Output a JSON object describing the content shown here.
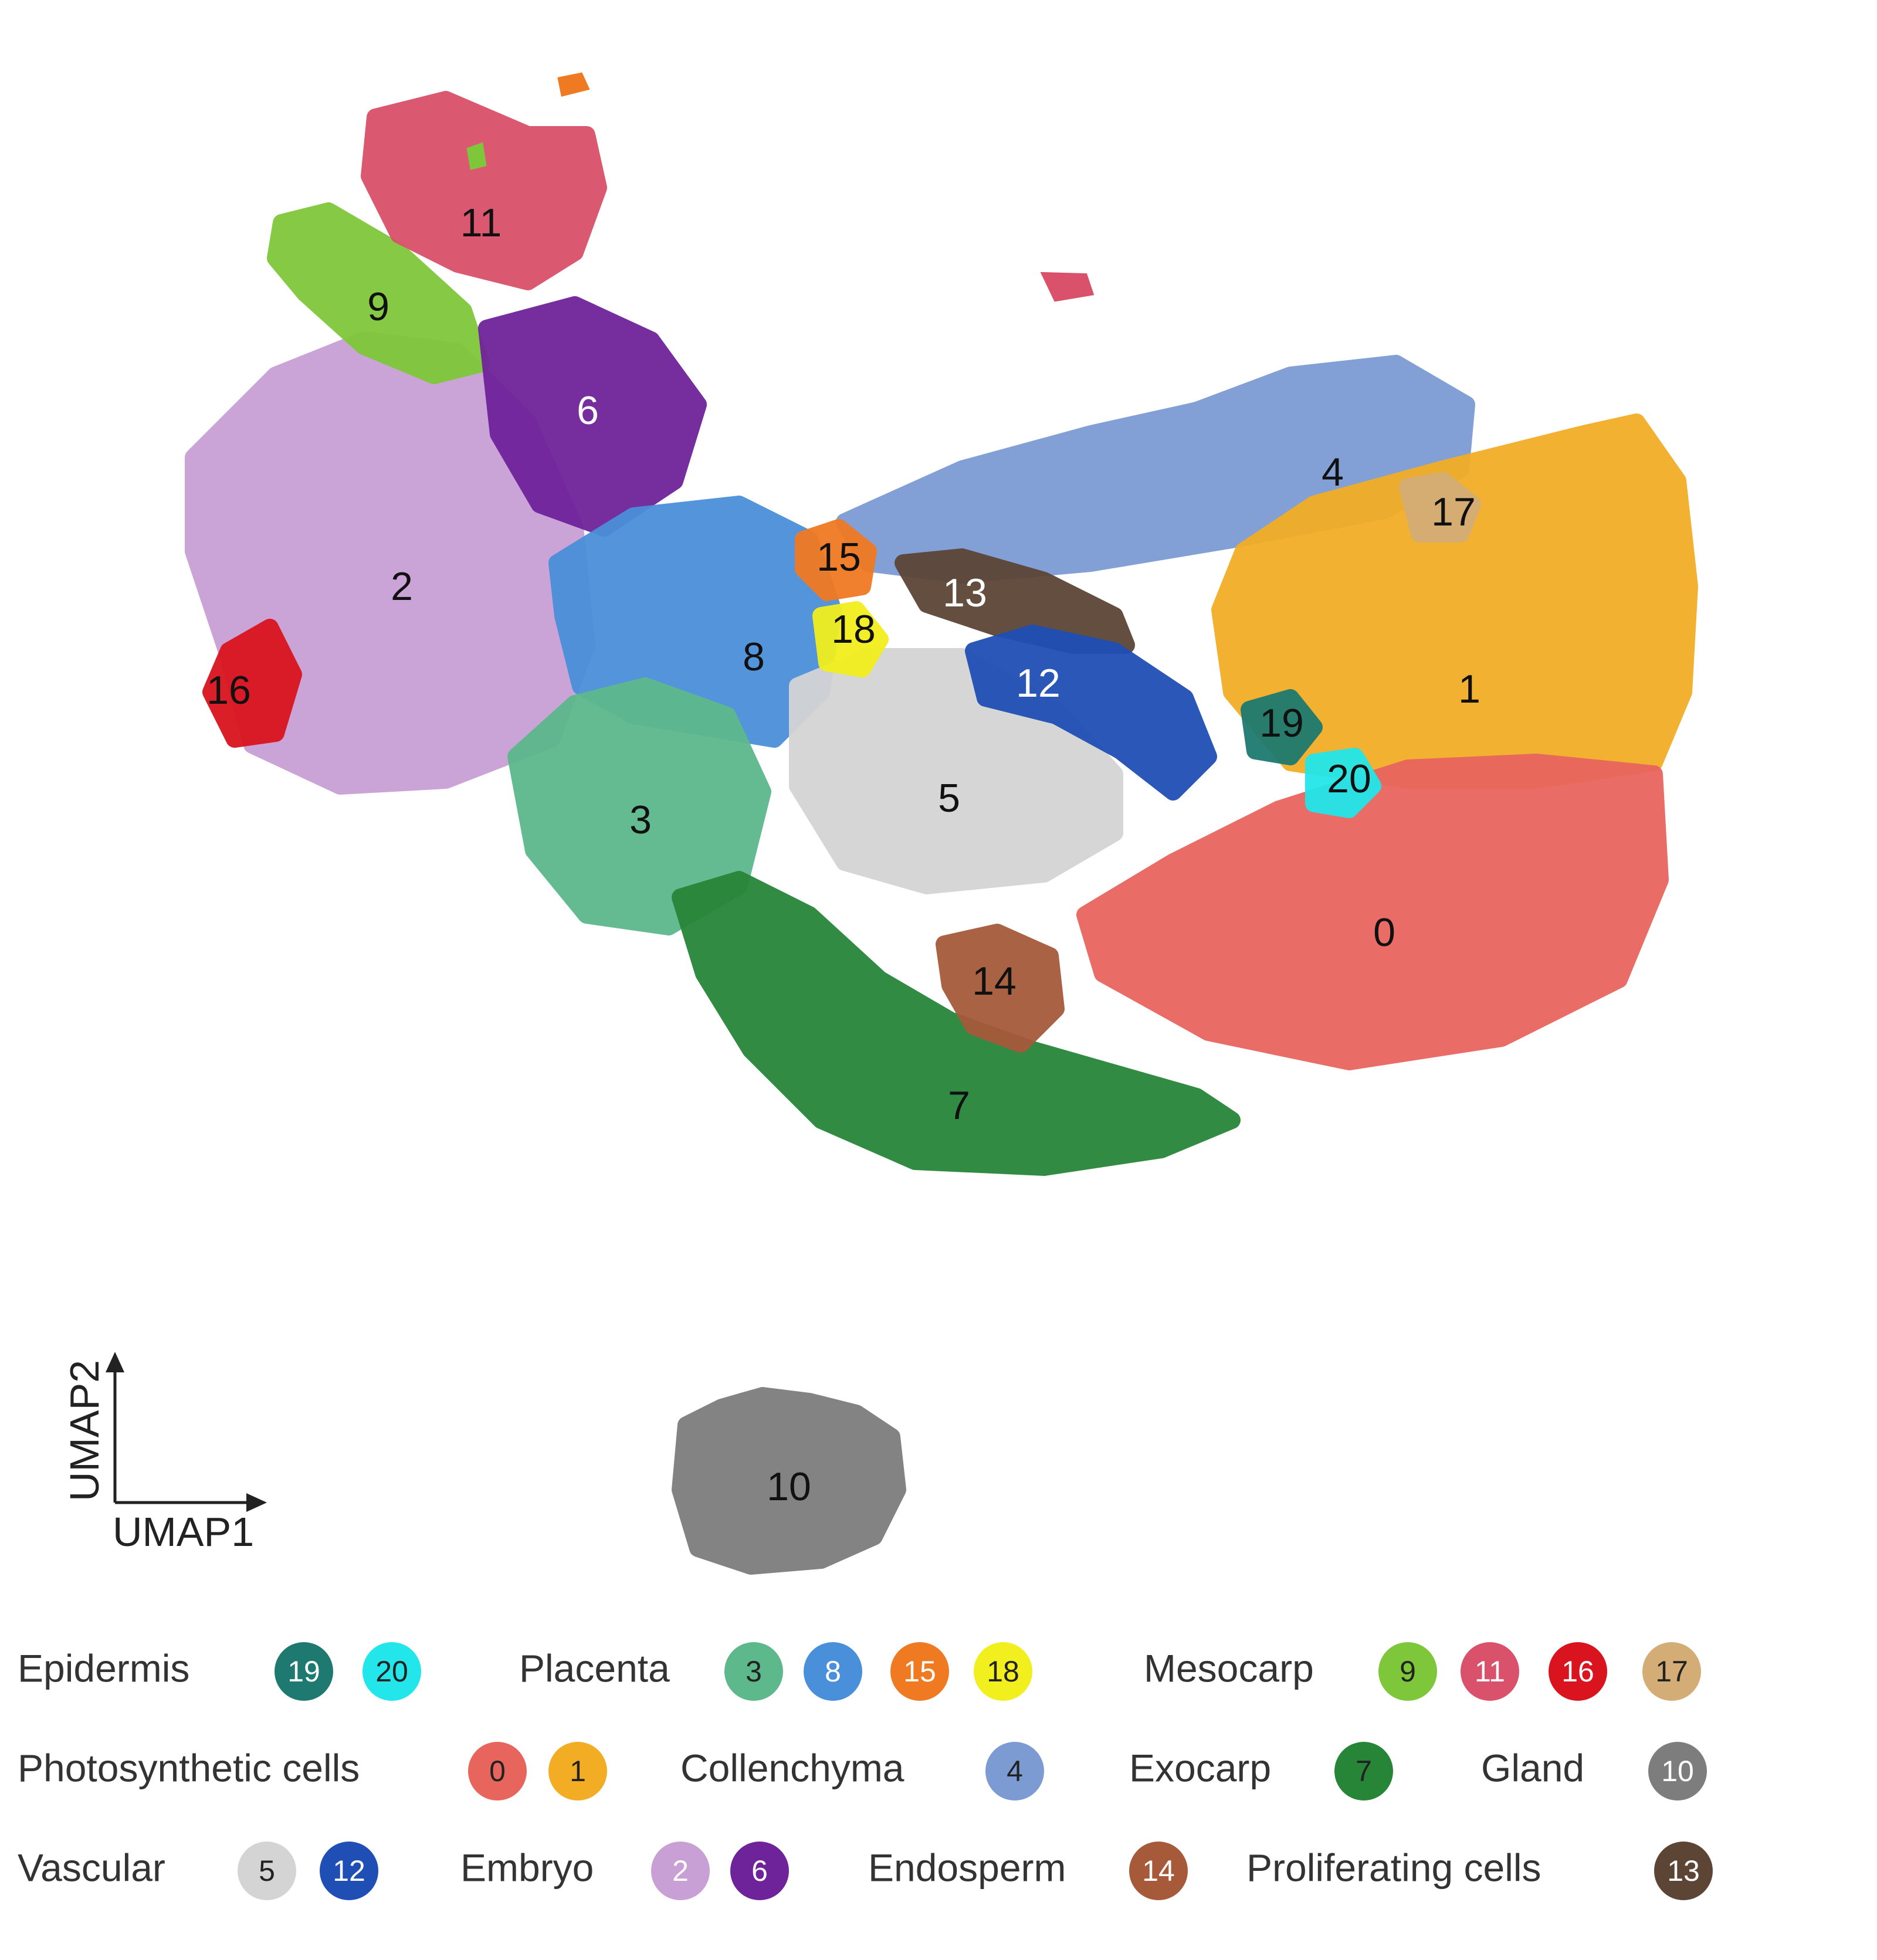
{
  "chart_data": {
    "type": "scatter",
    "title": "",
    "xlabel": "UMAP1",
    "ylabel": "UMAP2",
    "grid": false,
    "legend_placement": "bottom",
    "clusters": [
      {
        "id": "0",
        "tissue": "Photosynthetic cells",
        "color": "#e8655e"
      },
      {
        "id": "1",
        "tissue": "Photosynthetic cells",
        "color": "#f2ad25"
      },
      {
        "id": "2",
        "tissue": "Embryo",
        "color": "#c9a0d5"
      },
      {
        "id": "3",
        "tissue": "Placenta",
        "color": "#5db88c"
      },
      {
        "id": "4",
        "tissue": "Collenchyma",
        "color": "#7c9bd3"
      },
      {
        "id": "5",
        "tissue": "Vascular",
        "color": "#d4d4d4"
      },
      {
        "id": "6",
        "tissue": "Embryo",
        "color": "#6f239a"
      },
      {
        "id": "7",
        "tissue": "Exocarp",
        "color": "#278538"
      },
      {
        "id": "8",
        "tissue": "Placenta",
        "color": "#4a8fd9"
      },
      {
        "id": "9",
        "tissue": "Mesocarp",
        "color": "#7fc73a"
      },
      {
        "id": "10",
        "tissue": "Gland",
        "color": "#7d7d7d"
      },
      {
        "id": "11",
        "tissue": "Mesocarp",
        "color": "#d9516a"
      },
      {
        "id": "12",
        "tissue": "Vascular",
        "color": "#1f4fb5"
      },
      {
        "id": "13",
        "tissue": "Proliferating cells",
        "color": "#5c4535"
      },
      {
        "id": "14",
        "tissue": "Endosperm",
        "color": "#a65a3a"
      },
      {
        "id": "15",
        "tissue": "Placenta",
        "color": "#f07a22"
      },
      {
        "id": "16",
        "tissue": "Mesocarp",
        "color": "#d9141e"
      },
      {
        "id": "17",
        "tissue": "Mesocarp",
        "color": "#d4ad76"
      },
      {
        "id": "18",
        "tissue": "Placenta",
        "color": "#f2ef1e"
      },
      {
        "id": "19",
        "tissue": "Epidermis",
        "color": "#1e7a70"
      },
      {
        "id": "20",
        "tissue": "Epidermis",
        "color": "#22e6ea"
      }
    ],
    "legend": [
      {
        "label": "Epidermis",
        "clusters": [
          "19",
          "20"
        ]
      },
      {
        "label": "Placenta",
        "clusters": [
          "3",
          "8",
          "15",
          "18"
        ]
      },
      {
        "label": "Mesocarp",
        "clusters": [
          "9",
          "11",
          "16",
          "17"
        ]
      },
      {
        "label": "Photosynthetic cells",
        "clusters": [
          "0",
          "1"
        ]
      },
      {
        "label": "Collenchyma",
        "clusters": [
          "4"
        ]
      },
      {
        "label": "Exocarp",
        "clusters": [
          "7"
        ]
      },
      {
        "label": "Gland",
        "clusters": [
          "10"
        ]
      },
      {
        "label": "Vascular",
        "clusters": [
          "5",
          "12"
        ]
      },
      {
        "label": "Embryo",
        "clusters": [
          "2",
          "6"
        ]
      },
      {
        "label": "Endosperm",
        "clusters": [
          "14"
        ]
      },
      {
        "label": "Proliferating cells",
        "clusters": [
          "13"
        ]
      }
    ]
  }
}
